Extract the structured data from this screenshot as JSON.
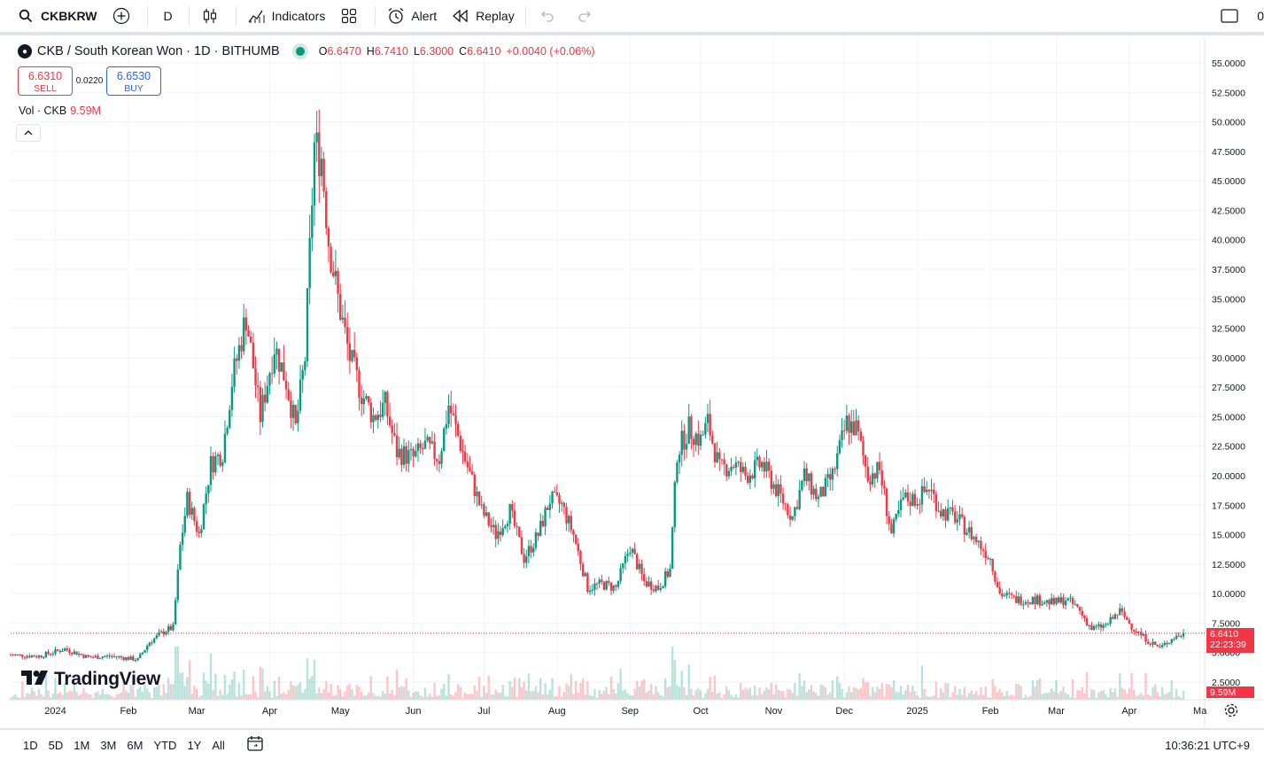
{
  "toolbar": {
    "symbol": "CKBKRW",
    "interval": "D",
    "indicators_label": "Indicators",
    "alert_label": "Alert",
    "replay_label": "Replay",
    "right_partial": "0"
  },
  "legend": {
    "title": "CKB / South Korean Won · 1D · BITHUMB",
    "open_label": "O",
    "open": "6.6470",
    "high_label": "H",
    "high": "6.7410",
    "low_label": "L",
    "low": "6.3000",
    "close_label": "C",
    "close": "6.6410",
    "change": "+0.0040 (+0.06%)"
  },
  "trade": {
    "sell_price": "6.6310",
    "sell_label": "SELL",
    "spread": "0.0220",
    "buy_price": "6.6530",
    "buy_label": "BUY"
  },
  "volume_legend": {
    "label": "Vol · CKB",
    "value": "9.59M"
  },
  "watermark": "TradingView",
  "price_axis": {
    "last_price": "6.6410",
    "countdown": "22:23:39",
    "volume_tag": "9.59M"
  },
  "bottom": {
    "ranges": [
      "1D",
      "5D",
      "1M",
      "3M",
      "6M",
      "YTD",
      "1Y",
      "All"
    ],
    "clock": "10:36:21 UTC+9"
  },
  "colors": {
    "up": "#089981",
    "down": "#f23645",
    "grid": "#f0f3fa",
    "axis_text": "#131722"
  },
  "chart_data": {
    "type": "candlestick",
    "symbol": "CKB / South Korean Won",
    "interval": "1D",
    "exchange": "BITHUMB",
    "y_axis": {
      "ticks": [
        2.5,
        5,
        7.5,
        10,
        12.5,
        15,
        17.5,
        20,
        22.5,
        25,
        27.5,
        30,
        32.5,
        35,
        37.5,
        40,
        42.5,
        45,
        47.5,
        50,
        52.5,
        55
      ],
      "tick_labels": [
        "2.5000",
        "5.0000",
        "7.5000",
        "10.0000",
        "12.5000",
        "15.0000",
        "17.5000",
        "20.0000",
        "22.5000",
        "25.0000",
        "27.5000",
        "30.0000",
        "32.5000",
        "35.0000",
        "37.5000",
        "40.0000",
        "42.5000",
        "45.0000",
        "47.5000",
        "50.0000",
        "52.5000",
        "55.0000"
      ],
      "range": [
        0.8,
        56
      ]
    },
    "x_axis": {
      "labels": [
        "2024",
        "Feb",
        "Mar",
        "Apr",
        "May",
        "Jun",
        "Jul",
        "Aug",
        "Sep",
        "Oct",
        "Nov",
        "Dec",
        "2025",
        "Feb",
        "Mar",
        "Apr",
        "Ma"
      ],
      "dates": [
        "2024-01-01",
        "2024-02-01",
        "2024-03-01",
        "2024-04-01",
        "2024-05-01",
        "2024-06-01",
        "2024-07-01",
        "2024-08-01",
        "2024-09-01",
        "2024-10-01",
        "2024-11-01",
        "2024-12-01",
        "2025-01-01",
        "2025-02-01",
        "2025-03-01",
        "2025-04-01",
        "2025-05-01"
      ],
      "range": [
        "2023-12-13",
        "2025-05-03"
      ]
    },
    "last_price": 6.641,
    "price_path": [
      {
        "date": "2023-12-13",
        "price": 4.8
      },
      {
        "date": "2023-12-25",
        "price": 4.7
      },
      {
        "date": "2024-01-05",
        "price": 5.3
      },
      {
        "date": "2024-01-15",
        "price": 4.6
      },
      {
        "date": "2024-01-25",
        "price": 4.7
      },
      {
        "date": "2024-02-05",
        "price": 4.4
      },
      {
        "date": "2024-02-10",
        "price": 5.9
      },
      {
        "date": "2024-02-17",
        "price": 6.9
      },
      {
        "date": "2024-02-20",
        "price": 7.1
      },
      {
        "date": "2024-02-23",
        "price": 14.0
      },
      {
        "date": "2024-02-26",
        "price": 18.0
      },
      {
        "date": "2024-03-02",
        "price": 15.0
      },
      {
        "date": "2024-03-07",
        "price": 21.0
      },
      {
        "date": "2024-03-12",
        "price": 22.0
      },
      {
        "date": "2024-03-16",
        "price": 28.0
      },
      {
        "date": "2024-03-22",
        "price": 33.5
      },
      {
        "date": "2024-03-28",
        "price": 25.0
      },
      {
        "date": "2024-04-03",
        "price": 31.0
      },
      {
        "date": "2024-04-08",
        "price": 28.0
      },
      {
        "date": "2024-04-12",
        "price": 24.0
      },
      {
        "date": "2024-04-16",
        "price": 30.0
      },
      {
        "date": "2024-04-20",
        "price": 48.0
      },
      {
        "date": "2024-04-23",
        "price": 47.0
      },
      {
        "date": "2024-04-26",
        "price": 40.0
      },
      {
        "date": "2024-04-30",
        "price": 35.0
      },
      {
        "date": "2024-05-05",
        "price": 30.0
      },
      {
        "date": "2024-05-10",
        "price": 27.0
      },
      {
        "date": "2024-05-15",
        "price": 25.0
      },
      {
        "date": "2024-05-20",
        "price": 26.0
      },
      {
        "date": "2024-05-25",
        "price": 22.0
      },
      {
        "date": "2024-06-01",
        "price": 21.5
      },
      {
        "date": "2024-06-06",
        "price": 22.5
      },
      {
        "date": "2024-06-12",
        "price": 21.5
      },
      {
        "date": "2024-06-16",
        "price": 26.0
      },
      {
        "date": "2024-06-22",
        "price": 22.0
      },
      {
        "date": "2024-06-30",
        "price": 17.0
      },
      {
        "date": "2024-07-06",
        "price": 15.0
      },
      {
        "date": "2024-07-12",
        "price": 17.0
      },
      {
        "date": "2024-07-18",
        "price": 13.0
      },
      {
        "date": "2024-07-24",
        "price": 15.0
      },
      {
        "date": "2024-07-29",
        "price": 18.0
      },
      {
        "date": "2024-08-03",
        "price": 17.5
      },
      {
        "date": "2024-08-08",
        "price": 15.0
      },
      {
        "date": "2024-08-14",
        "price": 10.5
      },
      {
        "date": "2024-08-20",
        "price": 10.8
      },
      {
        "date": "2024-08-26",
        "price": 10.5
      },
      {
        "date": "2024-09-01",
        "price": 14.0
      },
      {
        "date": "2024-09-07",
        "price": 11.0
      },
      {
        "date": "2024-09-13",
        "price": 10.5
      },
      {
        "date": "2024-09-18",
        "price": 12.0
      },
      {
        "date": "2024-09-21",
        "price": 22.0
      },
      {
        "date": "2024-09-26",
        "price": 24.0
      },
      {
        "date": "2024-10-01",
        "price": 23.0
      },
      {
        "date": "2024-10-04",
        "price": 24.5
      },
      {
        "date": "2024-10-09",
        "price": 20.5
      },
      {
        "date": "2024-10-15",
        "price": 21.0
      },
      {
        "date": "2024-10-20",
        "price": 20.0
      },
      {
        "date": "2024-10-27",
        "price": 21.0
      },
      {
        "date": "2024-11-03",
        "price": 18.5
      },
      {
        "date": "2024-11-09",
        "price": 16.5
      },
      {
        "date": "2024-11-14",
        "price": 20.0
      },
      {
        "date": "2024-11-20",
        "price": 18.0
      },
      {
        "date": "2024-11-26",
        "price": 20.0
      },
      {
        "date": "2024-12-02",
        "price": 24.5
      },
      {
        "date": "2024-12-06",
        "price": 24.0
      },
      {
        "date": "2024-12-11",
        "price": 20.0
      },
      {
        "date": "2024-12-16",
        "price": 20.5
      },
      {
        "date": "2024-12-21",
        "price": 15.0
      },
      {
        "date": "2024-12-26",
        "price": 18.0
      },
      {
        "date": "2025-01-01",
        "price": 18.0
      },
      {
        "date": "2025-01-06",
        "price": 19.0
      },
      {
        "date": "2025-01-11",
        "price": 17.0
      },
      {
        "date": "2025-01-17",
        "price": 16.5
      },
      {
        "date": "2025-01-24",
        "price": 15.0
      },
      {
        "date": "2025-02-01",
        "price": 13.0
      },
      {
        "date": "2025-02-05",
        "price": 10.0
      },
      {
        "date": "2025-02-12",
        "price": 9.5
      },
      {
        "date": "2025-02-20",
        "price": 9.5
      },
      {
        "date": "2025-02-28",
        "price": 9.2
      },
      {
        "date": "2025-03-05",
        "price": 9.5
      },
      {
        "date": "2025-03-10",
        "price": 8.8
      },
      {
        "date": "2025-03-16",
        "price": 7.0
      },
      {
        "date": "2025-03-22",
        "price": 7.3
      },
      {
        "date": "2025-03-28",
        "price": 8.5
      },
      {
        "date": "2025-04-03",
        "price": 7.0
      },
      {
        "date": "2025-04-09",
        "price": 6.0
      },
      {
        "date": "2025-04-14",
        "price": 5.4
      },
      {
        "date": "2025-04-20",
        "price": 6.3
      },
      {
        "date": "2025-04-25",
        "price": 6.64
      }
    ]
  }
}
